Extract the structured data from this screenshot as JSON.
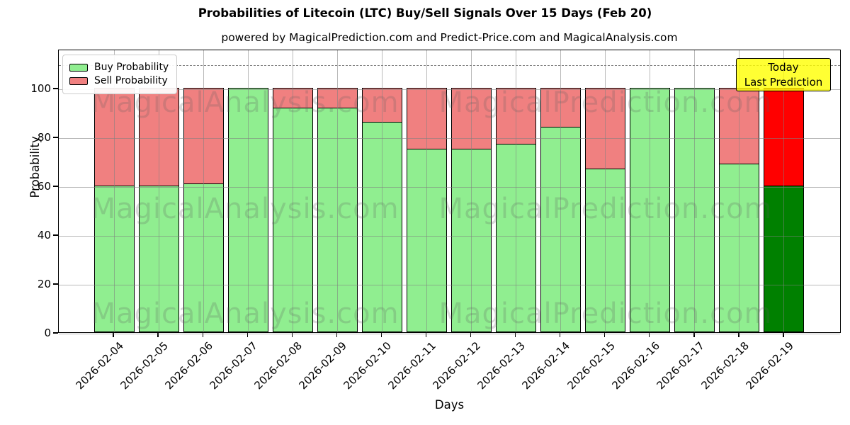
{
  "title": "Probabilities of Litecoin (LTC) Buy/Sell Signals Over 15 Days (Feb 20)",
  "subtitle": "powered by MagicalPrediction.com and Predict-Price.com and MagicalAnalysis.com",
  "axes": {
    "ylabel": "Probability",
    "xlabel": "Days",
    "yticks": [
      0,
      20,
      40,
      60,
      80,
      100
    ]
  },
  "legend": {
    "items": [
      {
        "label": "Buy Probability",
        "color": "#90ee90"
      },
      {
        "label": "Sell Probability",
        "color": "#f08080"
      }
    ]
  },
  "annotation": {
    "line1": "Today",
    "line2": "Last Prediction",
    "bg_color": "#ffff00"
  },
  "watermarks": {
    "left": "MagicalAnalysis.com",
    "right": "MagicalPrediction.com"
  },
  "chart_data": {
    "type": "bar",
    "stacked": true,
    "title": "Probabilities of Litecoin (LTC) Buy/Sell Signals Over 15 Days (Feb 20)",
    "xlabel": "Days",
    "ylabel": "Probability",
    "ylim": [
      0,
      116
    ],
    "grid": true,
    "dashed_line_y": 110,
    "legend_position": "upper left",
    "categories": [
      "2026-02-04",
      "2026-02-05",
      "2026-02-06",
      "2026-02-07",
      "2026-02-08",
      "2026-02-09",
      "2026-02-10",
      "2026-02-11",
      "2026-02-12",
      "2026-02-13",
      "2026-02-14",
      "2026-02-15",
      "2026-02-16",
      "2026-02-17",
      "2026-02-18",
      "2026-02-19"
    ],
    "series": [
      {
        "name": "Buy Probability",
        "color": "#90ee90",
        "values": [
          60,
          60,
          61,
          100,
          92,
          92,
          86,
          75,
          75,
          77,
          84,
          67,
          100,
          100,
          69,
          60
        ]
      },
      {
        "name": "Sell Probability",
        "color": "#f08080",
        "values": [
          40,
          40,
          39,
          0,
          8,
          8,
          14,
          25,
          25,
          23,
          16,
          33,
          0,
          0,
          31,
          40
        ]
      }
    ],
    "last_bar_colors": {
      "buy": "#008000",
      "sell": "#ff0000"
    }
  }
}
